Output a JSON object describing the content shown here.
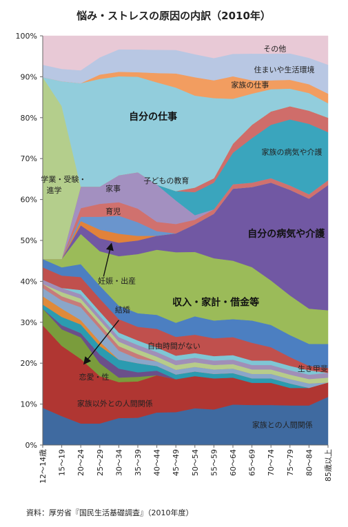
{
  "chart_data": {
    "type": "area",
    "stacked": true,
    "title": "悩み・ストレスの原因の内訳（2010年）",
    "source": "資料：厚労省『国民生活基礎調査』（2010年度）",
    "categories": [
      "12～14歳",
      "15～19",
      "20～24",
      "25～29",
      "30～34",
      "35～39",
      "40～44",
      "45～49",
      "50～54",
      "55～59",
      "60～64",
      "65～69",
      "70～74",
      "75～79",
      "80～84",
      "85歳以上"
    ],
    "y_ticks": [
      "0%",
      "10%",
      "20%",
      "30%",
      "40%",
      "50%",
      "60%",
      "70%",
      "80%",
      "90%",
      "100%"
    ],
    "ylim": [
      0,
      100
    ],
    "grid": false,
    "series": [
      {
        "name": "家族との人間関係",
        "color": "#3f6aa0",
        "values": [
          9,
          7,
          5,
          5,
          6,
          6,
          7,
          7,
          8,
          8,
          9,
          9,
          9,
          9,
          9,
          10
        ]
      },
      {
        "name": "家族以外との人間関係",
        "color": "#b03632",
        "values": [
          20,
          17,
          15,
          11,
          8,
          8,
          8,
          7,
          7,
          7,
          6,
          5,
          5,
          4,
          4,
          3
        ]
      },
      {
        "name": "恋愛・性",
        "color": "#7a9c3c",
        "values": [
          4,
          4,
          5,
          3,
          1,
          1,
          0,
          0,
          0,
          0,
          0,
          0,
          0,
          0,
          0,
          0
        ]
      },
      {
        "name": "結婚",
        "color": "#6b4f8a",
        "values": [
          0,
          1,
          1,
          2,
          2,
          1,
          1,
          0,
          0,
          0,
          0,
          0,
          0,
          0,
          0,
          0
        ]
      },
      {
        "name": "生き甲斐",
        "color": "#2b9bb0",
        "values": [
          1,
          2,
          2,
          2,
          2,
          2,
          1,
          1,
          1,
          1,
          1,
          1,
          1,
          1,
          0,
          0
        ]
      },
      {
        "name": "(blank1)",
        "color": "#e08a3a",
        "values": [
          2,
          2,
          1,
          1,
          0,
          0,
          0,
          0,
          0,
          0,
          0,
          0,
          0,
          0,
          0,
          0
        ]
      },
      {
        "name": "(blank2)",
        "color": "#8aa6c9",
        "values": [
          2,
          2,
          3,
          3,
          2,
          1,
          1,
          1,
          1,
          1,
          1,
          1,
          1,
          1,
          1,
          0
        ]
      },
      {
        "name": "(blank3)",
        "color": "#c77b7a",
        "values": [
          1,
          1,
          1,
          1,
          1,
          1,
          0,
          0,
          0,
          0,
          0,
          0,
          0,
          0,
          0,
          0
        ]
      },
      {
        "name": "(blank4)",
        "color": "#b7cc8a",
        "values": [
          0,
          1,
          1,
          1,
          1,
          1,
          1,
          1,
          1,
          1,
          1,
          1,
          1,
          1,
          1,
          1
        ]
      },
      {
        "name": "(blank5)",
        "color": "#a08fb8",
        "values": [
          1,
          1,
          1,
          1,
          1,
          1,
          1,
          1,
          1,
          1,
          1,
          1,
          1,
          1,
          1,
          1
        ]
      },
      {
        "name": "(blank6)",
        "color": "#7fc6d5",
        "values": [
          0,
          0,
          1,
          1,
          1,
          1,
          1,
          1,
          1,
          1,
          1,
          1,
          1,
          1,
          1,
          0
        ]
      },
      {
        "name": "自由時間がない",
        "color": "#c0504d",
        "values": [
          3,
          3,
          3,
          3,
          3,
          3,
          4,
          4,
          4,
          4,
          4,
          4,
          3,
          2,
          1,
          1
        ]
      },
      {
        "name": "生き甲斐",
        "color": "#4c7fc1",
        "values": [
          2,
          2,
          3,
          3,
          3,
          3,
          3,
          3,
          4,
          4,
          4,
          5,
          5,
          5,
          5,
          5
        ]
      },
      {
        "name": "収入・家計・借金等",
        "color": "#9bbb59",
        "values": [
          0,
          2,
          7,
          8,
          11,
          13,
          14,
          15,
          14,
          14,
          13,
          12,
          10,
          9,
          8,
          7
        ]
      },
      {
        "name": "自分の病気や介護",
        "color": "#7158a3",
        "values": [
          0,
          0,
          2,
          3,
          3,
          3,
          3,
          4,
          6,
          10,
          16,
          18,
          22,
          24,
          25,
          26
        ]
      },
      {
        "name": "妊娠・出産",
        "color": "#e1823a",
        "values": [
          0,
          0,
          1,
          2,
          2,
          1,
          0,
          0,
          0,
          0,
          0,
          0,
          0,
          0,
          0,
          0
        ]
      },
      {
        "name": "育児",
        "color": "#6a95cd",
        "values": [
          0,
          0,
          1,
          3,
          4,
          3,
          1,
          0,
          0,
          0,
          0,
          0,
          0,
          0,
          0,
          0
        ]
      },
      {
        "name": "家事",
        "color": "#d0716e",
        "values": [
          0,
          0,
          2,
          3,
          3,
          3,
          2,
          2,
          1,
          1,
          1,
          1,
          1,
          1,
          1,
          1
        ]
      },
      {
        "name": "子どもの教育",
        "color": "#a390c0",
        "values": [
          0,
          0,
          5,
          4,
          6,
          8,
          8,
          5,
          1,
          0,
          0,
          0,
          0,
          0,
          0,
          0
        ]
      },
      {
        "name": "家族の病気や介護",
        "color": "#3aa5bd",
        "values": [
          0,
          0,
          0,
          0,
          0,
          0,
          0,
          2,
          5,
          6,
          7,
          10,
          12,
          15,
          16,
          10
        ]
      },
      {
        "name": "(blank7)",
        "color": "#cf6d6a",
        "values": [
          0,
          0,
          0,
          0,
          0,
          0,
          0,
          0,
          1,
          1,
          2,
          3,
          3,
          3,
          3,
          3
        ]
      },
      {
        "name": "学業・受験・進学",
        "color": "#b4ce8c",
        "values": [
          44,
          37,
          0,
          0,
          0,
          0,
          0,
          0,
          0,
          0,
          0,
          0,
          0,
          0,
          0,
          0
        ]
      },
      {
        "name": "自分の仕事",
        "color": "#92cddc",
        "values": [
          0,
          6,
          24,
          25,
          22,
          21,
          22,
          22,
          20,
          18,
          10,
          7,
          5,
          4,
          4,
          3
        ]
      },
      {
        "name": "家族の仕事",
        "color": "#f29d60",
        "values": [
          0,
          0,
          0,
          1,
          1,
          1,
          2,
          3,
          4,
          4,
          5,
          3,
          2,
          2,
          2,
          2
        ]
      },
      {
        "name": "住まいや生活環境",
        "color": "#b8c7e3",
        "values": [
          3,
          3,
          3,
          4,
          5,
          5,
          5,
          5,
          5,
          5,
          5,
          6,
          6,
          6,
          6,
          6
        ]
      },
      {
        "name": "その他",
        "color": "#e8c9d6",
        "values": [
          7,
          8,
          8,
          5,
          3,
          3,
          3,
          3,
          4,
          5,
          4,
          4,
          4,
          4,
          5,
          6
        ]
      }
    ],
    "labels": [
      {
        "text": "その他",
        "series": "その他"
      },
      {
        "text": "住まいや生活環境",
        "series": "住まいや生活環境"
      },
      {
        "text": "家族の仕事",
        "series": "家族の仕事"
      },
      {
        "text": "自分の仕事",
        "series": "自分の仕事"
      },
      {
        "text": "学業・受験・",
        "series": "学業・受験・進学"
      },
      {
        "text": "進学",
        "series": "学業・受験・進学"
      },
      {
        "text": "家族の病気や介護",
        "series": "家族の病気や介護"
      },
      {
        "text": "子どもの教育",
        "series": "子どもの教育"
      },
      {
        "text": "家事",
        "series": "家事"
      },
      {
        "text": "育児",
        "series": "育児"
      },
      {
        "text": "自分の病気や介護",
        "series": "自分の病気や介護"
      },
      {
        "text": "妊娠・出産",
        "series": "妊娠・出産"
      },
      {
        "text": "収入・家計・借金等",
        "series": "収入・家計・借金等"
      },
      {
        "text": "結婚",
        "series": "結婚"
      },
      {
        "text": "自由時間がない",
        "series": "自由時間がない"
      },
      {
        "text": "生き甲斐",
        "series": "生き甲斐"
      },
      {
        "text": "恋愛・性",
        "series": "恋愛・性"
      },
      {
        "text": "家族以外との人間関係",
        "series": "家族以外との人間関係"
      },
      {
        "text": "家族との人間関係",
        "series": "家族との人間関係"
      }
    ]
  }
}
